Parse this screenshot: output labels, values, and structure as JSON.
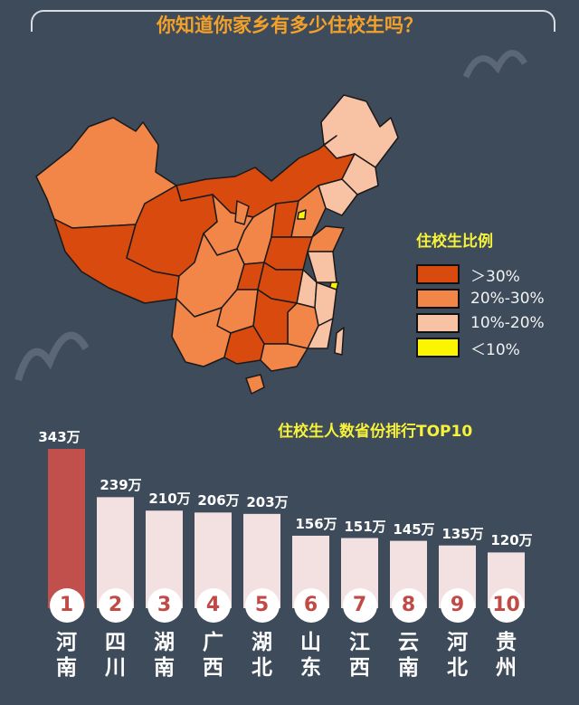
{
  "header": {
    "title": "你知道你家乡有多少住校生吗？"
  },
  "legend": {
    "title": "住校生比例",
    "items": [
      {
        "label": "＞30%",
        "color": "#d94a0e"
      },
      {
        "label": "20%-30%",
        "color": "#f28548"
      },
      {
        "label": "10%-20%",
        "color": "#f8c2a4"
      },
      {
        "label": "＜10%",
        "color": "#fbf500"
      }
    ]
  },
  "ranking_title": "住校生人数省份排行TOP10",
  "chart_data": {
    "type": "bar",
    "title": "住校生人数省份排行TOP10",
    "categories": [
      "河南",
      "四川",
      "湖南",
      "广西",
      "湖北",
      "山东",
      "江西",
      "云南",
      "河北",
      "贵州"
    ],
    "values": [
      343,
      239,
      210,
      206,
      203,
      156,
      151,
      145,
      135,
      120
    ],
    "value_labels": [
      "343万",
      "239万",
      "210万",
      "206万",
      "203万",
      "156万",
      "151万",
      "145万",
      "135万",
      "120万"
    ],
    "ranks": [
      "1",
      "2",
      "3",
      "4",
      "5",
      "6",
      "7",
      "8",
      "9",
      "10"
    ],
    "colors": {
      "first": "#c14f4c",
      "rest": "#f3e0e1"
    }
  }
}
